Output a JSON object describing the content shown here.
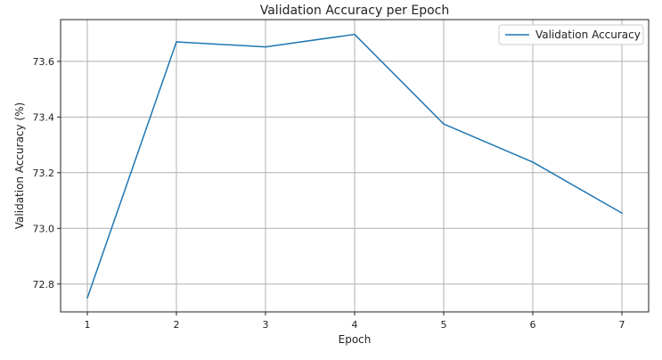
{
  "chart_data": {
    "type": "line",
    "title": "Validation Accuracy per Epoch",
    "xlabel": "Epoch",
    "ylabel": "Validation Accuracy (%)",
    "x": [
      1,
      2,
      3,
      4,
      5,
      6,
      7
    ],
    "series": [
      {
        "name": "Validation Accuracy",
        "values": [
          72.75,
          73.67,
          73.652,
          73.697,
          73.375,
          73.238,
          73.055
        ],
        "color": "#1f77b4"
      }
    ],
    "xticks": [
      "1",
      "2",
      "3",
      "4",
      "5",
      "6",
      "7"
    ],
    "yticks": [
      "72.8",
      "73.0",
      "73.2",
      "73.4",
      "73.6"
    ],
    "ytick_values": [
      72.8,
      73.0,
      73.2,
      73.4,
      73.6
    ],
    "xlim": [
      0.7,
      7.3
    ],
    "ylim": [
      72.7,
      73.75
    ],
    "grid": true,
    "legend_position": "top-right"
  }
}
